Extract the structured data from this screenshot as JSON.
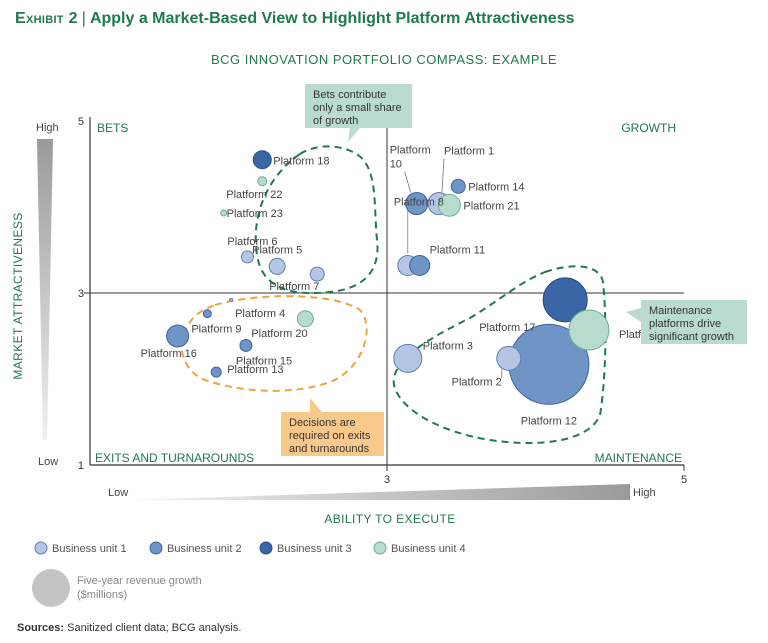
{
  "header": {
    "exhibit_label": "Exhibit 2",
    "exhibit_title": "Apply a Market-Based View to Highlight Platform Attractiveness",
    "subtitle": "BCG INNOVATION PORTFOLIO COMPASS: EXAMPLE"
  },
  "colors": {
    "Business unit 1": "#b4c6e4",
    "Business unit 2": "#6f95c6",
    "Business unit 3": "#3a66a5",
    "Business unit 4": "#b7dcce",
    "accent_green": "#1f7a4d",
    "accent_orange": "#f0a33d",
    "callout_green": "#b9dccd",
    "callout_orange": "#f9c98c"
  },
  "chart_data": {
    "type": "scatter",
    "subtype": "bubble",
    "xlabel": "ABILITY TO EXECUTE",
    "ylabel": "MARKET ATTRACTIVENESS",
    "xlim": [
      1,
      5
    ],
    "ylim": [
      1,
      5
    ],
    "x_ticks": [
      3,
      5
    ],
    "y_ticks": [
      1,
      3,
      5
    ],
    "x_low_label": "Low",
    "x_high_label": "High",
    "y_low_label": "Low",
    "y_high_label": "High",
    "quadrants": {
      "top_left": "BETS",
      "top_right": "GROWTH",
      "bottom_left": "EXITS AND TURNAROUNDS",
      "bottom_right": "MAINTENANCE"
    },
    "points": [
      {
        "label": "Platform 1",
        "x": 3.35,
        "y": 4.04,
        "unit": "Business unit 1",
        "r": 11
      },
      {
        "label": "Platform 2",
        "x": 3.82,
        "y": 2.24,
        "unit": "Business unit 1",
        "r": 12
      },
      {
        "label": "Platform 3",
        "x": 3.14,
        "y": 2.24,
        "unit": "Business unit 1",
        "r": 14
      },
      {
        "label": "Platform 4",
        "x": 1.95,
        "y": 2.92,
        "unit": "Business unit 1",
        "r": 1.5
      },
      {
        "label": "Platform 5",
        "x": 2.26,
        "y": 3.31,
        "unit": "Business unit 1",
        "r": 8
      },
      {
        "label": "Platform 6",
        "x": 2.06,
        "y": 3.42,
        "unit": "Business unit 1",
        "r": 6
      },
      {
        "label": "Platform 7",
        "x": 2.53,
        "y": 3.22,
        "unit": "Business unit 1",
        "r": 7
      },
      {
        "label": "Platform 8",
        "x": 3.14,
        "y": 3.32,
        "unit": "Business unit 1",
        "r": 10
      },
      {
        "label": "Platform 9",
        "x": 1.79,
        "y": 2.76,
        "unit": "Business unit 2",
        "r": 4
      },
      {
        "label": "Platform 10",
        "x": 3.2,
        "y": 4.04,
        "unit": "Business unit 2",
        "r": 11
      },
      {
        "label": "Platform 11",
        "x": 3.22,
        "y": 3.32,
        "unit": "Business unit 2",
        "r": 10
      },
      {
        "label": "Platform 12",
        "x": 4.09,
        "y": 2.17,
        "unit": "Business unit 2",
        "r": 40
      },
      {
        "label": "Platform 13",
        "x": 1.85,
        "y": 2.08,
        "unit": "Business unit 2",
        "r": 5
      },
      {
        "label": "Platform 14",
        "x": 3.48,
        "y": 4.24,
        "unit": "Business unit 2",
        "r": 7
      },
      {
        "label": "Platform 15",
        "x": 2.05,
        "y": 2.39,
        "unit": "Business unit 2",
        "r": 6
      },
      {
        "label": "Platform 16",
        "x": 1.59,
        "y": 2.5,
        "unit": "Business unit 2",
        "r": 11
      },
      {
        "label": "Platform 17",
        "x": 4.2,
        "y": 2.92,
        "unit": "Business unit 3",
        "r": 22
      },
      {
        "label": "Platform 18",
        "x": 2.16,
        "y": 4.55,
        "unit": "Business unit 3",
        "r": 9
      },
      {
        "label": "Platform 19",
        "x": 4.36,
        "y": 2.57,
        "unit": "Business unit 4",
        "r": 20
      },
      {
        "label": "Platform 20",
        "x": 2.45,
        "y": 2.7,
        "unit": "Business unit 4",
        "r": 8
      },
      {
        "label": "Platform 21",
        "x": 3.42,
        "y": 4.02,
        "unit": "Business unit 4",
        "r": 11
      },
      {
        "label": "Platform 22",
        "x": 2.16,
        "y": 4.3,
        "unit": "Business unit 4",
        "r": 4.5
      },
      {
        "label": "Platform 23",
        "x": 1.9,
        "y": 3.93,
        "unit": "Business unit 4",
        "r": 3
      }
    ],
    "legend": {
      "placement": "bottom-left",
      "entries": [
        "Business unit 1",
        "Business unit 2",
        "Business unit 3",
        "Business unit 4"
      ],
      "size_note_line1": "Five-year revenue growth",
      "size_note_line2": "($millions)"
    },
    "callouts": {
      "bets": [
        "Bets contribute",
        "only a small share",
        "of growth"
      ],
      "maintenance": [
        "Maintenance",
        "platforms drive",
        "significant growth"
      ],
      "exits": [
        "Decisions are",
        "required on exits",
        "and turnarounds"
      ]
    }
  },
  "footer": {
    "source_label": "Sources:",
    "source_text": "Sanitized client data; BCG analysis."
  }
}
